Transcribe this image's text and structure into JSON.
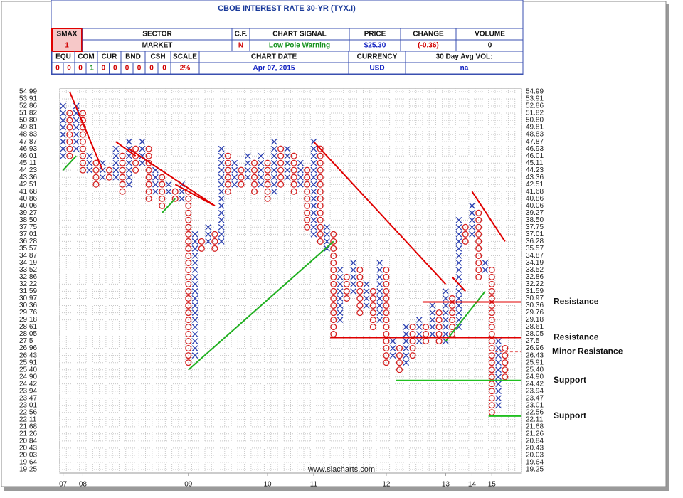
{
  "header": {
    "title": "CBOE INTEREST RATE 30-YR (TYX.I)",
    "fields": [
      {
        "label": "SMAX",
        "value": "1"
      },
      {
        "label": "SECTOR",
        "value": "MARKET"
      },
      {
        "label": "C.F.",
        "value": "N"
      },
      {
        "label": "CHART SIGNAL",
        "value": "Low Pole Warning"
      },
      {
        "label": "PRICE",
        "value": "$25.30"
      },
      {
        "label": "CHANGE",
        "value": "(-0.36)"
      },
      {
        "label": "VOLUME",
        "value": "0"
      }
    ],
    "scores": [
      {
        "label": "EQU",
        "values": [
          0,
          0
        ]
      },
      {
        "label": "COM",
        "values": [
          0,
          1
        ]
      },
      {
        "label": "CUR",
        "values": [
          0,
          0
        ]
      },
      {
        "label": "BND",
        "values": [
          0,
          0
        ]
      },
      {
        "label": "CSH",
        "values": [
          0,
          0
        ]
      }
    ],
    "fields2": [
      {
        "label": "SCALE",
        "value": "2%"
      },
      {
        "label": "CHART DATE",
        "value": "Apr 07, 2015"
      },
      {
        "label": "CURRENCY",
        "value": "USD"
      },
      {
        "label": "30 Day Avg VOL:",
        "value": "na"
      }
    ]
  },
  "chart_data": {
    "type": "point-and-figure",
    "log_scale": true,
    "grid": true,
    "x_color": "#2a3fb0",
    "o_color": "#d42020",
    "ylim": [
      19.25,
      54.99
    ],
    "yticks": [
      54.99,
      53.91,
      52.86,
      51.82,
      {
        "value": 50.8,
        "label": "50.80"
      },
      49.81,
      48.83,
      47.87,
      46.93,
      46.01,
      45.11,
      44.23,
      43.36,
      42.51,
      41.68,
      40.86,
      40.06,
      39.27,
      {
        "value": 38.5,
        "label": "38.50"
      },
      37.75,
      37.01,
      36.28,
      35.57,
      34.87,
      34.19,
      33.52,
      32.86,
      32.22,
      31.59,
      30.97,
      30.36,
      29.76,
      29.18,
      28.61,
      28.05,
      27.5,
      26.96,
      26.43,
      25.91,
      {
        "value": 25.4,
        "label": "25.40"
      },
      {
        "value": 24.9,
        "label": "24.90"
      },
      24.42,
      23.94,
      23.47,
      23.01,
      22.56,
      22.11,
      21.68,
      21.26,
      20.84,
      20.43,
      20.03,
      19.64,
      19.25
    ],
    "xlim": [
      0,
      70
    ],
    "xticks": [
      {
        "value": 0,
        "label": "07"
      },
      {
        "value": 3,
        "label": "08"
      },
      {
        "value": 19,
        "label": "09"
      },
      {
        "value": 31,
        "label": "10"
      },
      {
        "value": 38,
        "label": "11"
      },
      {
        "value": 49,
        "label": "12"
      },
      {
        "value": 58,
        "label": "13"
      },
      {
        "value": 62,
        "label": "14"
      },
      {
        "value": 65,
        "label": "15"
      }
    ],
    "columns": [
      {
        "kind": "X",
        "low": 46.01,
        "high": 52.86
      },
      {
        "kind": "O",
        "low": 46.01,
        "high": 51.82
      },
      {
        "kind": "X",
        "low": 46.93,
        "high": 52.86
      },
      {
        "kind": "O",
        "low": 44.23,
        "high": 51.82
      },
      {
        "kind": "X",
        "low": 44.23,
        "high": 46.01
      },
      {
        "kind": "O",
        "low": 42.51,
        "high": 45.11
      },
      {
        "kind": "X",
        "low": 43.36,
        "high": 45.11
      },
      {
        "kind": "O",
        "low": 43.36,
        "high": 44.23
      },
      {
        "kind": "X",
        "low": 43.36,
        "high": 46.93
      },
      {
        "kind": "O",
        "low": 41.68,
        "high": 46.01
      },
      {
        "kind": "X",
        "low": 42.51,
        "high": 47.87
      },
      {
        "kind": "O",
        "low": 44.23,
        "high": 46.93
      },
      {
        "kind": "X",
        "low": 45.11,
        "high": 47.87
      },
      {
        "kind": "O",
        "low": 40.86,
        "high": 46.93
      },
      {
        "kind": "X",
        "low": 41.68,
        "high": 44.23
      },
      {
        "kind": "O",
        "low": 40.06,
        "high": 43.36
      },
      {
        "kind": "X",
        "low": 41.68,
        "high": 42.51
      },
      {
        "kind": "O",
        "low": 40.86,
        "high": 41.68
      },
      {
        "kind": "X",
        "low": 40.86,
        "high": 42.51
      },
      {
        "kind": "O",
        "low": 25.91,
        "high": 41.68
      },
      {
        "kind": "X",
        "low": 26.43,
        "high": 37.01
      },
      {
        "kind": "O",
        "low": 35.57,
        "high": 36.28
      },
      {
        "kind": "X",
        "low": 36.28,
        "high": 37.75
      },
      {
        "kind": "O",
        "low": 35.57,
        "high": 37.01
      },
      {
        "kind": "X",
        "low": 36.28,
        "high": 46.93
      },
      {
        "kind": "O",
        "low": 41.68,
        "high": 46.01
      },
      {
        "kind": "X",
        "low": 42.51,
        "high": 45.11
      },
      {
        "kind": "O",
        "low": 42.51,
        "high": 44.23
      },
      {
        "kind": "X",
        "low": 43.36,
        "high": 46.01
      },
      {
        "kind": "O",
        "low": 41.68,
        "high": 45.11
      },
      {
        "kind": "X",
        "low": 42.51,
        "high": 46.01
      },
      {
        "kind": "O",
        "low": 40.86,
        "high": 45.11
      },
      {
        "kind": "X",
        "low": 41.68,
        "high": 47.87
      },
      {
        "kind": "O",
        "low": 42.51,
        "high": 46.93
      },
      {
        "kind": "X",
        "low": 43.36,
        "high": 46.93
      },
      {
        "kind": "O",
        "low": 41.68,
        "high": 46.01
      },
      {
        "kind": "X",
        "low": 42.51,
        "high": 45.11
      },
      {
        "kind": "O",
        "low": 37.75,
        "high": 44.23
      },
      {
        "kind": "X",
        "low": 37.01,
        "high": 47.87
      },
      {
        "kind": "O",
        "low": 36.28,
        "high": 46.93
      },
      {
        "kind": "X",
        "low": 35.57,
        "high": 37.75
      },
      {
        "kind": "O",
        "low": 28.05,
        "high": 37.01
      },
      {
        "kind": "X",
        "low": 29.18,
        "high": 33.52
      },
      {
        "kind": "O",
        "low": 30.97,
        "high": 32.86
      },
      {
        "kind": "X",
        "low": 31.59,
        "high": 34.19
      },
      {
        "kind": "O",
        "low": 29.76,
        "high": 33.52
      },
      {
        "kind": "X",
        "low": 30.36,
        "high": 32.22
      },
      {
        "kind": "O",
        "low": 28.61,
        "high": 31.59
      },
      {
        "kind": "X",
        "low": 29.18,
        "high": 34.19
      },
      {
        "kind": "O",
        "low": 25.91,
        "high": 33.52
      },
      {
        "kind": "X",
        "low": 26.43,
        "high": 27.5
      },
      {
        "kind": "O",
        "low": 25.4,
        "high": 26.96
      },
      {
        "kind": "X",
        "low": 25.91,
        "high": 28.61
      },
      {
        "kind": "O",
        "low": 26.43,
        "high": 28.61
      },
      {
        "kind": "X",
        "low": 27.5,
        "high": 29.18
      },
      {
        "kind": "O",
        "low": 27.5,
        "high": 28.61
      },
      {
        "kind": "X",
        "low": 28.05,
        "high": 30.36
      },
      {
        "kind": "O",
        "low": 27.5,
        "high": 29.76
      },
      {
        "kind": "X",
        "low": 27.5,
        "high": 31.59
      },
      {
        "kind": "O",
        "low": 28.05,
        "high": 30.97
      },
      {
        "kind": "X",
        "low": 28.61,
        "high": 38.5
      },
      {
        "kind": "O",
        "low": 36.28,
        "high": 37.75
      },
      {
        "kind": "X",
        "low": 37.01,
        "high": 40.06
      },
      {
        "kind": "O",
        "low": 32.86,
        "high": 39.27
      },
      {
        "kind": "X",
        "low": 33.52,
        "high": 34.19
      },
      {
        "kind": "O",
        "low": 22.56,
        "high": 33.52
      },
      {
        "kind": "X",
        "low": 23.01,
        "high": 27.5
      },
      {
        "kind": "O",
        "low": 24.9,
        "high": 26.96
      }
    ],
    "trend_lines": [
      {
        "color": "#e00000",
        "from": [
          1,
          54.99
        ],
        "to": [
          6,
          44.23
        ]
      },
      {
        "color": "#e00000",
        "from": [
          8,
          47.87
        ],
        "to": [
          11,
          46.01
        ]
      },
      {
        "color": "#e00000",
        "from": [
          10,
          46.93
        ],
        "to": [
          23,
          40.06
        ]
      },
      {
        "color": "#e00000",
        "from": [
          17,
          42.51
        ],
        "to": [
          23,
          40.06
        ]
      },
      {
        "color": "#e00000",
        "from": [
          38,
          47.87
        ],
        "to": [
          58,
          32.22
        ]
      },
      {
        "color": "#e00000",
        "from": [
          59,
          32.86
        ],
        "to": [
          61,
          31.59
        ]
      },
      {
        "color": "#e00000",
        "from": [
          62,
          41.68
        ],
        "to": [
          67,
          36.28
        ]
      },
      {
        "color": "#20b020",
        "from": [
          0,
          44.23
        ],
        "to": [
          2,
          46.01
        ]
      },
      {
        "color": "#20b020",
        "from": [
          15,
          39.27
        ],
        "to": [
          17,
          40.86
        ]
      },
      {
        "color": "#20b020",
        "from": [
          19,
          25.4
        ],
        "to": [
          41,
          36.28
        ]
      },
      {
        "color": "#20b020",
        "from": [
          58,
          27.5
        ],
        "to": [
          64,
          31.59
        ]
      }
    ],
    "levels": [
      {
        "label": "Resistance",
        "value": 30.66,
        "from": 55,
        "color": "#e00000",
        "dashed": false
      },
      {
        "label": "Resistance",
        "value": 27.78,
        "from": 41,
        "color": "#e00000",
        "dashed": false
      },
      {
        "label": "Minor Resistance",
        "value": 26.7,
        "from": 66,
        "color": "#e87070",
        "dashed": true
      },
      {
        "label": "Support",
        "value": 24.66,
        "from": 51,
        "color": "#20c020",
        "dashed": false
      },
      {
        "label": "Support",
        "value": 22.33,
        "from": 65,
        "color": "#20c020",
        "dashed": false
      }
    ],
    "source": "www.siacharts.com"
  }
}
